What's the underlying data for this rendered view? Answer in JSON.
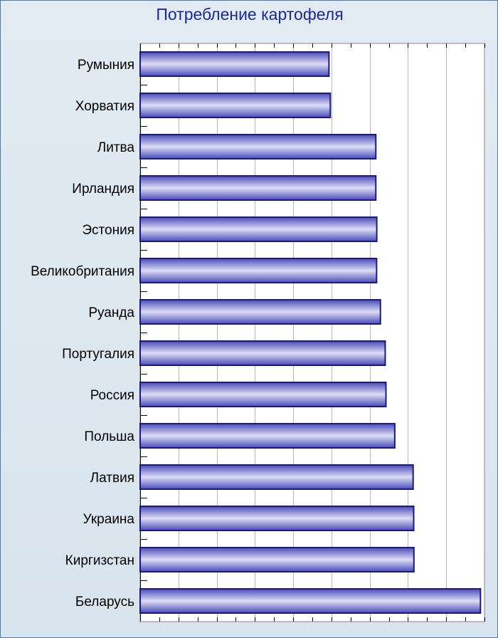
{
  "chart_data": {
    "type": "bar",
    "orientation": "horizontal",
    "title": "Потребление картофеля",
    "xlabel": "",
    "ylabel": "",
    "xlim": [
      0,
      180
    ],
    "grid": true,
    "categories": [
      "Румыния",
      "Хорватия",
      "Литва",
      "Ирландия",
      "Эстония",
      "Великобритания",
      "Руанда",
      "Португалия",
      "Россия",
      "Польша",
      "Латвия",
      "Украина",
      "Киргизстан",
      "Беларусь"
    ],
    "values": [
      98.7,
      99.4,
      123.2,
      123.2,
      123.7,
      123.6,
      125.6,
      128.1,
      128.5,
      133.1,
      142.7,
      143.0,
      143.1,
      177.9
    ],
    "colors": {
      "bar_dark": "#1a1a78",
      "bar_mid": "#4a4ab8",
      "bar_light": "#dcdcf6",
      "title": "#1a2a8e",
      "border": "#4a7bb0",
      "plot_bg": "#ffffff",
      "frame_bg": "#dde8f0"
    }
  }
}
